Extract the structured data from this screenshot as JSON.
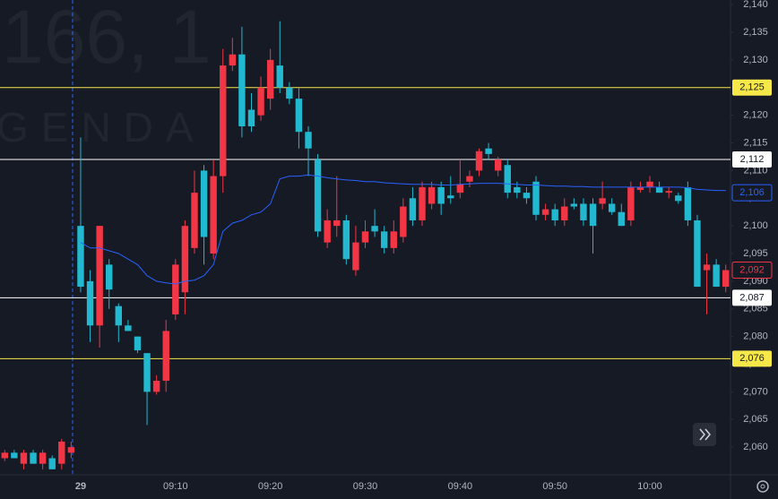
{
  "chart_data": {
    "type": "candlestick",
    "watermark": [
      "166, 1",
      "GENDA"
    ],
    "up_color": "#f23645",
    "down_color": "#22b8cf",
    "ylim": [
      2055,
      2141
    ],
    "yticks": [
      {
        "value": 2060,
        "label": "2,060"
      },
      {
        "value": 2065,
        "label": "2,065"
      },
      {
        "value": 2070,
        "label": "2,070"
      },
      {
        "value": 2075,
        "label": "2,075"
      },
      {
        "value": 2080,
        "label": "2,080"
      },
      {
        "value": 2085,
        "label": "2,085"
      },
      {
        "value": 2090,
        "label": "2,090"
      },
      {
        "value": 2095,
        "label": "2,095"
      },
      {
        "value": 2100,
        "label": "2,100"
      },
      {
        "value": 2105,
        "label": "2,105"
      },
      {
        "value": 2110,
        "label": "2,110"
      },
      {
        "value": 2115,
        "label": "2,115"
      },
      {
        "value": 2120,
        "label": "2,120"
      },
      {
        "value": 2125,
        "label": "2,125"
      },
      {
        "value": 2130,
        "label": "2,130"
      },
      {
        "value": 2135,
        "label": "2,135"
      },
      {
        "value": 2140,
        "label": "2,140"
      }
    ],
    "categories": [
      null,
      null,
      null,
      null,
      null,
      null,
      null,
      null,
      "29",
      null,
      null,
      null,
      null,
      null,
      null,
      null,
      null,
      null,
      "09:10",
      null,
      null,
      null,
      null,
      null,
      null,
      null,
      null,
      null,
      "09:20",
      null,
      null,
      null,
      null,
      null,
      null,
      null,
      null,
      null,
      "09:30",
      null,
      null,
      null,
      null,
      null,
      null,
      null,
      null,
      null,
      "09:40",
      null,
      null,
      null,
      null,
      null,
      null,
      null,
      null,
      null,
      "09:50",
      null,
      null,
      null,
      null,
      null,
      null,
      null,
      null,
      null,
      "10:00",
      null,
      null,
      null,
      null,
      null,
      null,
      null,
      null
    ],
    "open": [
      2058,
      2059,
      2057,
      2059,
      2057,
      2058,
      2057,
      2059,
      2100,
      2090,
      2082,
      2093,
      2085.5,
      2082,
      2080,
      2077,
      2070,
      2072,
      2084,
      2088,
      2096,
      2110,
      2095,
      2109,
      2129,
      2131,
      2121,
      2120,
      2123,
      2129,
      2125,
      2123,
      2117,
      2112,
      2097,
      2100,
      2101,
      2092,
      2097,
      2100,
      2099,
      2096,
      2098,
      2105,
      2101,
      2104,
      2107,
      2105.5,
      2106,
      2108,
      2110,
      2114,
      2110,
      2111,
      2107,
      2106,
      2108,
      2102,
      2103,
      2101,
      2104,
      2104,
      2104,
      2104,
      2104,
      2102.5,
      2101,
      2106.5,
      2107,
      2107,
      2106,
      2105.5,
      2107,
      2101,
      2092,
      2093,
      2089
    ],
    "high": [
      2059.5,
      2059.5,
      2059.5,
      2059.5,
      2059.5,
      2058.5,
      2061.5,
      2061,
      2116,
      2092,
      2100,
      2094,
      2086,
      2083,
      2080,
      2077,
      2073,
      2083,
      2094,
      2101,
      2110,
      2111,
      2112,
      2132,
      2134,
      2136,
      2124,
      2127,
      2132,
      2137,
      2126,
      2125,
      2118,
      2113,
      2103,
      2109,
      2102,
      2100,
      2101,
      2103,
      2100,
      2101,
      2105,
      2107,
      2108,
      2108,
      2108,
      2109,
      2112,
      2110,
      2114,
      2115,
      2112.5,
      2112,
      2108,
      2107,
      2109,
      2104,
      2104,
      2105,
      2105,
      2105,
      2105,
      2108,
      2105,
      2104,
      2108,
      2108,
      2109,
      2108,
      2107,
      2106,
      2108,
      2102,
      2095,
      2094,
      2093
    ],
    "low": [
      2057.5,
      2058,
      2056,
      2057,
      2056,
      2056,
      2056,
      2058,
      2088,
      2079,
      2078,
      2085,
      2079,
      2081,
      2077,
      2064,
      2069.5,
      2070,
      2083,
      2084,
      2095,
      2093,
      2094,
      2106,
      2128,
      2116,
      2117,
      2119,
      2121,
      2124,
      2122,
      2114,
      2109,
      2098,
      2096,
      2098,
      2093,
      2091,
      2096,
      2098,
      2095,
      2095,
      2097,
      2100,
      2100,
      2103,
      2102,
      2104,
      2105,
      2107,
      2109,
      2112,
      2109,
      2105,
      2105,
      2104,
      2101,
      2101,
      2100,
      2100,
      2103,
      2100,
      2095,
      2103,
      2102,
      2100,
      2100,
      2106,
      2106,
      2106,
      2105,
      2104,
      2100,
      2089,
      2084,
      2089,
      2088
    ],
    "close": [
      2059,
      2058,
      2059,
      2057,
      2059,
      2056,
      2061,
      2060,
      2089,
      2082,
      2100,
      2088.5,
      2082,
      2081,
      2077.5,
      2070,
      2072,
      2081,
      2093,
      2100,
      2106,
      2098,
      2109,
      2129,
      2131,
      2118,
      2118,
      2125,
      2130,
      2125,
      2123,
      2117,
      2114,
      2099,
      2101,
      2101,
      2094,
      2097,
      2099,
      2099,
      2096,
      2099,
      2103.5,
      2101,
      2107,
      2107,
      2104,
      2105,
      2107.5,
      2109,
      2113.5,
      2113,
      2112,
      2106,
      2106,
      2105,
      2102,
      2103,
      2101,
      2103.5,
      2103.5,
      2101,
      2100,
      2105,
      2102.5,
      2100,
      2107,
      2107,
      2108,
      2106,
      2106.3,
      2104.5,
      2101,
      2089,
      2093,
      2089,
      2092
    ],
    "line": {
      "color": "#2962ff",
      "values": [
        null,
        null,
        null,
        null,
        null,
        null,
        null,
        null,
        2097,
        2096,
        2096,
        2095.5,
        2095,
        2094,
        2093,
        2091,
        2090,
        2089.7,
        2089.5,
        2090,
        2090.2,
        2091,
        2093,
        2099,
        2100.5,
        2101,
        2102,
        2102.5,
        2104,
        2108.5,
        2109,
        2109,
        2109.2,
        2109,
        2108.7,
        2108.5,
        2108.3,
        2108.2,
        2108,
        2108,
        2107.8,
        2107.7,
        2107.6,
        2107.5,
        2107.5,
        2107.5,
        2107.4,
        2107.4,
        2107.5,
        2107.6,
        2107.7,
        2107.7,
        2107.7,
        2107.6,
        2107.5,
        2107.4,
        2107.4,
        2107.3,
        2107.2,
        2107.2,
        2107.1,
        2107.1,
        2107,
        2107,
        2107,
        2107,
        2107,
        2107,
        2107,
        2107,
        2107,
        2107,
        2106.9,
        2106.6,
        2106.5,
        2106.4,
        2106.4
      ]
    },
    "levels": [
      {
        "value": 2125,
        "label": "2,125",
        "color": "#f7e84a"
      },
      {
        "value": 2112,
        "label": "2,112",
        "color": "#ffffff"
      },
      {
        "value": 2087,
        "label": "2,087",
        "color": "#ffffff"
      },
      {
        "value": 2076,
        "label": "2,076",
        "color": "#f7e84a"
      }
    ],
    "price_tags": [
      {
        "value": 2106,
        "label": "2,106",
        "color": "#2962ff"
      },
      {
        "value": 2092,
        "label": "2,092",
        "color": "#f23645"
      }
    ]
  }
}
